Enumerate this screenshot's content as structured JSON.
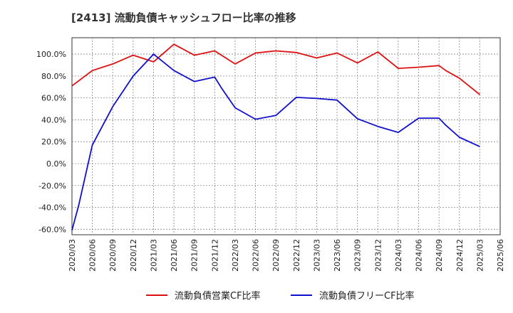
{
  "chart_data": {
    "type": "line",
    "title": "[2413]  流動負債キャッシュフロー比率の推移",
    "xlabel": "",
    "ylabel": "",
    "ylim": [
      -65,
      115
    ],
    "y_ticks": [
      "-60.0%",
      "-40.0%",
      "-20.0%",
      "0.0%",
      "20.0%",
      "40.0%",
      "60.0%",
      "80.0%",
      "100.0%"
    ],
    "y_tick_values": [
      -60,
      -40,
      -20,
      0,
      20,
      40,
      60,
      80,
      100
    ],
    "x_ticks": [
      "2020/03",
      "2020/06",
      "2020/09",
      "2020/12",
      "2021/03",
      "2021/06",
      "2021/09",
      "2021/12",
      "2022/03",
      "2022/06",
      "2022/09",
      "2022/12",
      "2023/03",
      "2023/06",
      "2023/09",
      "2023/12",
      "2024/03",
      "2024/06",
      "2024/09",
      "2024/12",
      "2025/03",
      "2025/06"
    ],
    "grid": true,
    "legend_position": "bottom",
    "series": [
      {
        "name": "流動負債営業CF比率",
        "color": "#dd1111",
        "points": [
          [
            "2020/03",
            71
          ],
          [
            "2020/06",
            85
          ],
          [
            "2020/09",
            91
          ],
          [
            "2020/12",
            99
          ],
          [
            "2021/03",
            93
          ],
          [
            "2021/06",
            109
          ],
          [
            "2021/09",
            99
          ],
          [
            "2021/12",
            103
          ],
          [
            "2022/03",
            91
          ],
          [
            "2022/06",
            101
          ],
          [
            "2022/09",
            103
          ],
          [
            "2022/12",
            101.5
          ],
          [
            "2023/03",
            96.5
          ],
          [
            "2023/06",
            101
          ],
          [
            "2023/09",
            92
          ],
          [
            "2023/12",
            102
          ],
          [
            "2024/03",
            87
          ],
          [
            "2024/06",
            88
          ],
          [
            "2024/09",
            89.5
          ],
          [
            "2024/10",
            85
          ],
          [
            "2024/12",
            78
          ],
          [
            "2025/03",
            63
          ]
        ]
      },
      {
        "name": "流動負債フリーCF比率",
        "color": "#1111cc",
        "points": [
          [
            "2020/03",
            -61
          ],
          [
            "2020/04",
            -38
          ],
          [
            "2020/06",
            17
          ],
          [
            "2020/09",
            52
          ],
          [
            "2020/12",
            80
          ],
          [
            "2021/03",
            100
          ],
          [
            "2021/06",
            85
          ],
          [
            "2021/09",
            75
          ],
          [
            "2021/12",
            79
          ],
          [
            "2022/01",
            69
          ],
          [
            "2022/03",
            51
          ],
          [
            "2022/06",
            40.5
          ],
          [
            "2022/09",
            44
          ],
          [
            "2022/12",
            60.5
          ],
          [
            "2023/03",
            59.5
          ],
          [
            "2023/06",
            58
          ],
          [
            "2023/09",
            41
          ],
          [
            "2023/12",
            34
          ],
          [
            "2024/03",
            28.5
          ],
          [
            "2024/06",
            41.5
          ],
          [
            "2024/09",
            41.5
          ],
          [
            "2024/10",
            35
          ],
          [
            "2024/12",
            24
          ],
          [
            "2025/03",
            15.5
          ]
        ]
      }
    ]
  }
}
